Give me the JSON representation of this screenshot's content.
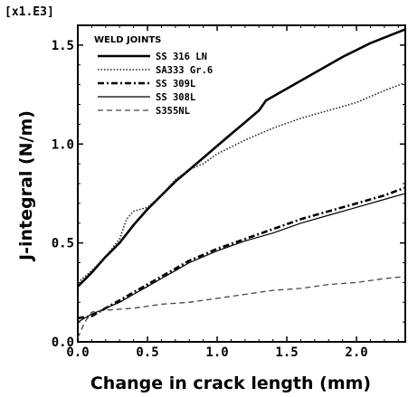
{
  "chart_data": {
    "type": "line",
    "multiplier_label": "[x1.E3]",
    "xlabel": "Change in crack length (mm)",
    "ylabel": "J-integral (N/m)",
    "xlim": [
      0.0,
      2.35
    ],
    "ylim": [
      0.0,
      1.6
    ],
    "x_ticks": [
      "0.0",
      "0.5",
      "1.0",
      "1.5",
      "2.0"
    ],
    "x_tick_values": [
      0.0,
      0.5,
      1.0,
      1.5,
      2.0
    ],
    "y_ticks": [
      "0.0",
      "0.5",
      "1.0",
      "1.5"
    ],
    "y_tick_values": [
      0.0,
      0.5,
      1.0,
      1.5
    ],
    "legend_title": "WELD JOINTS",
    "legend_position": "top-left",
    "grid": false,
    "series": [
      {
        "name": "SS 316 LN",
        "style": "thick-solid",
        "x": [
          0.0,
          0.1,
          0.2,
          0.3,
          0.4,
          0.5,
          0.6,
          0.7,
          0.8,
          0.9,
          1.0,
          1.1,
          1.2,
          1.3,
          1.35,
          1.5,
          1.7,
          1.9,
          2.1,
          2.35
        ],
        "y": [
          0.28,
          0.35,
          0.43,
          0.5,
          0.59,
          0.67,
          0.74,
          0.81,
          0.87,
          0.93,
          0.99,
          1.05,
          1.11,
          1.17,
          1.22,
          1.28,
          1.36,
          1.44,
          1.51,
          1.58
        ]
      },
      {
        "name": "SA333 Gr.6",
        "style": "dotted",
        "x": [
          0.0,
          0.1,
          0.2,
          0.3,
          0.35,
          0.4,
          0.5,
          0.6,
          0.7,
          0.8,
          0.9,
          1.0,
          1.2,
          1.4,
          1.6,
          1.8,
          2.0,
          2.2,
          2.35
        ],
        "y": [
          0.3,
          0.36,
          0.43,
          0.52,
          0.62,
          0.66,
          0.68,
          0.74,
          0.82,
          0.87,
          0.9,
          0.95,
          1.02,
          1.08,
          1.13,
          1.17,
          1.21,
          1.27,
          1.31
        ]
      },
      {
        "name": "SS 309L",
        "style": "dash-dot",
        "x": [
          0.0,
          0.1,
          0.2,
          0.3,
          0.4,
          0.5,
          0.6,
          0.7,
          0.8,
          0.9,
          1.0,
          1.2,
          1.4,
          1.6,
          1.8,
          2.0,
          2.2,
          2.35
        ],
        "y": [
          0.12,
          0.13,
          0.17,
          0.21,
          0.25,
          0.29,
          0.33,
          0.37,
          0.41,
          0.44,
          0.47,
          0.52,
          0.57,
          0.62,
          0.66,
          0.7,
          0.74,
          0.78
        ]
      },
      {
        "name": "SS 308L",
        "style": "thin-solid",
        "x": [
          0.0,
          0.1,
          0.2,
          0.3,
          0.4,
          0.5,
          0.6,
          0.7,
          0.8,
          0.9,
          1.0,
          1.2,
          1.4,
          1.6,
          1.8,
          2.0,
          2.2,
          2.35
        ],
        "y": [
          0.1,
          0.14,
          0.17,
          0.2,
          0.24,
          0.28,
          0.32,
          0.36,
          0.4,
          0.43,
          0.46,
          0.51,
          0.55,
          0.6,
          0.64,
          0.68,
          0.72,
          0.75
        ]
      },
      {
        "name": "S355NL",
        "style": "dashed",
        "x": [
          0.0,
          0.05,
          0.1,
          0.2,
          0.4,
          0.6,
          0.8,
          1.0,
          1.2,
          1.4,
          1.6,
          1.8,
          2.0,
          2.2,
          2.35
        ],
        "y": [
          0.02,
          0.1,
          0.15,
          0.16,
          0.17,
          0.19,
          0.2,
          0.22,
          0.24,
          0.26,
          0.27,
          0.29,
          0.3,
          0.32,
          0.33
        ]
      }
    ]
  }
}
